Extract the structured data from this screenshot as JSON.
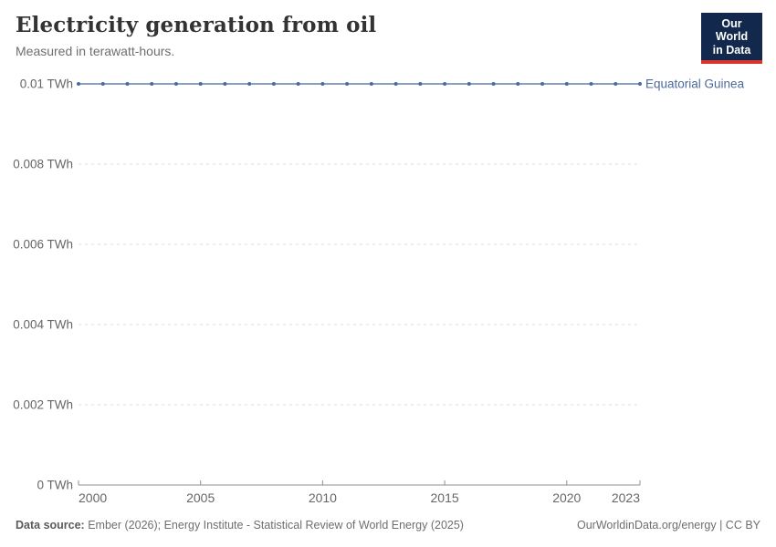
{
  "header": {
    "title": "Electricity generation from oil",
    "subtitle": "Measured in terawatt-hours."
  },
  "logo": {
    "line1": "Our World",
    "line2": "in Data",
    "bg_color": "#12294d",
    "accent_color": "#d8352c"
  },
  "chart_data": {
    "type": "line",
    "title": "Electricity generation from oil",
    "subtitle": "Measured in terawatt-hours.",
    "unit": "TWh",
    "x": [
      2000,
      2001,
      2002,
      2003,
      2004,
      2005,
      2006,
      2007,
      2008,
      2009,
      2010,
      2011,
      2012,
      2013,
      2014,
      2015,
      2016,
      2017,
      2018,
      2019,
      2020,
      2021,
      2022,
      2023
    ],
    "series": [
      {
        "name": "Equatorial Guinea",
        "color": "#4c6a9c",
        "line_color": "#6480ab",
        "values": [
          0.01,
          0.01,
          0.01,
          0.01,
          0.01,
          0.01,
          0.01,
          0.01,
          0.01,
          0.01,
          0.01,
          0.01,
          0.01,
          0.01,
          0.01,
          0.01,
          0.01,
          0.01,
          0.01,
          0.01,
          0.01,
          0.01,
          0.01,
          0.01
        ]
      }
    ],
    "ylim": [
      0,
      0.01
    ],
    "yticks": [
      0,
      0.002,
      0.004,
      0.006,
      0.008,
      0.01
    ],
    "ytick_labels": [
      "0 TWh",
      "0.002 TWh",
      "0.004 TWh",
      "0.006 TWh",
      "0.008 TWh",
      "0.01 TWh"
    ],
    "xticks": [
      2000,
      2005,
      2010,
      2015,
      2020,
      2023
    ],
    "xtick_labels": [
      "2000",
      "2005",
      "2010",
      "2015",
      "2020",
      "2023"
    ],
    "grid": "horizontal-dashed",
    "grid_color": "#dcdcdc",
    "axis_color": "#8f8f8f",
    "tick_label_color": "#666666",
    "legend_position": "end-of-line"
  },
  "footer": {
    "source_label": "Data source:",
    "source_text": "Ember (2026); Energy Institute - Statistical Review of World Energy (2025)",
    "right_text": "OurWorldinData.org/energy | CC BY"
  }
}
